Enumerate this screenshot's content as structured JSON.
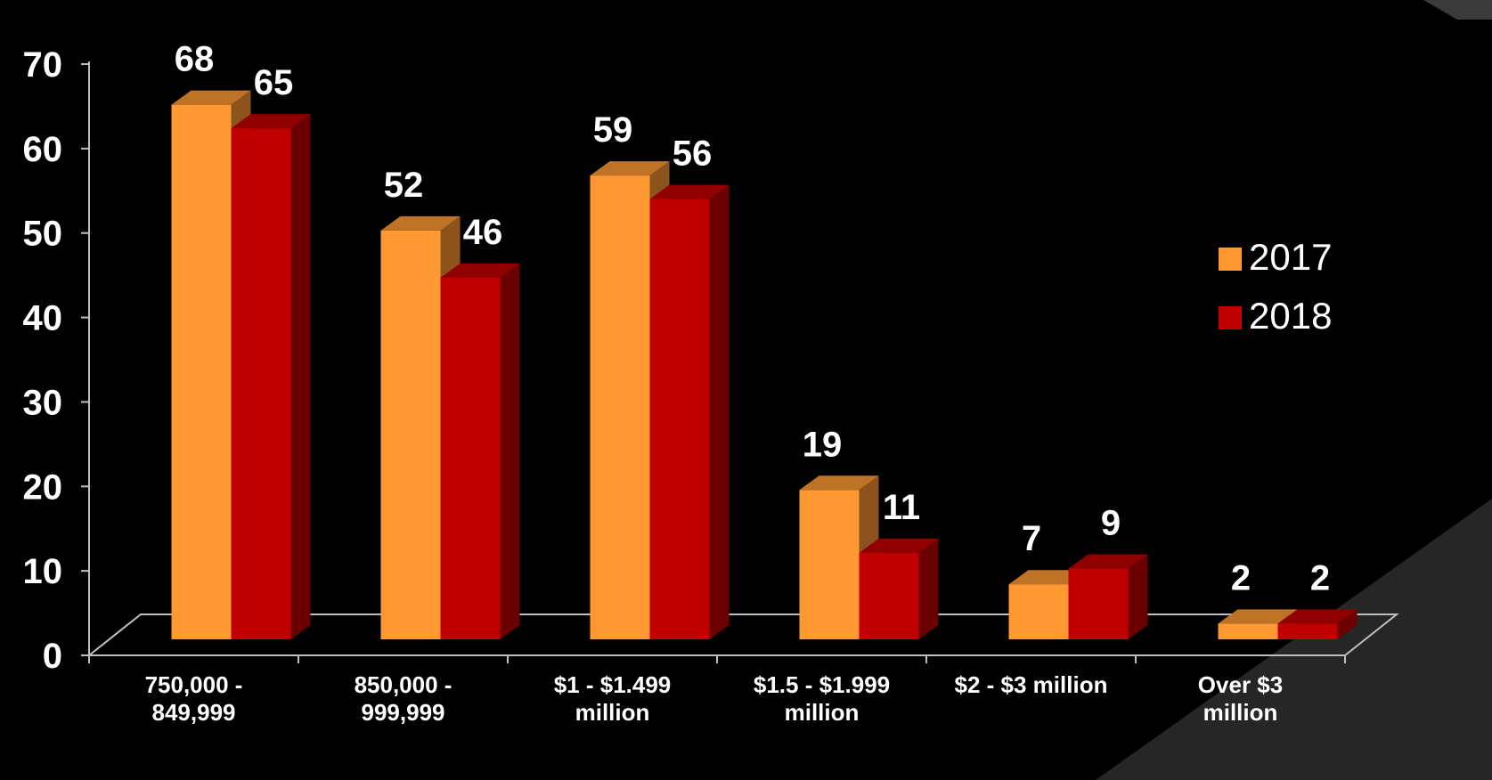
{
  "chart_data": {
    "type": "bar",
    "categories": [
      [
        "750,000 -",
        "849,999"
      ],
      [
        "850,000 -",
        "999,999"
      ],
      [
        "$1 - $1.499",
        "million"
      ],
      [
        "$1.5 - $1.999",
        "million"
      ],
      [
        "$2 - $3 million"
      ],
      [
        "Over $3",
        "million"
      ]
    ],
    "series": [
      {
        "name": "2017",
        "values": [
          68,
          52,
          59,
          19,
          7,
          2
        ],
        "color": "#FF9933"
      },
      {
        "name": "2018",
        "values": [
          65,
          46,
          56,
          11,
          9,
          2
        ],
        "color": "#C00000"
      }
    ],
    "y_ticks": [
      "0",
      "10",
      "20",
      "30",
      "40",
      "50",
      "60",
      "70"
    ],
    "ylim": [
      0,
      70
    ],
    "legend_position": "right",
    "grid": false,
    "style": "3d-column",
    "colors": {
      "background": "#000000",
      "text": "#FFFFFF",
      "axis": "#BFBFBF"
    }
  }
}
